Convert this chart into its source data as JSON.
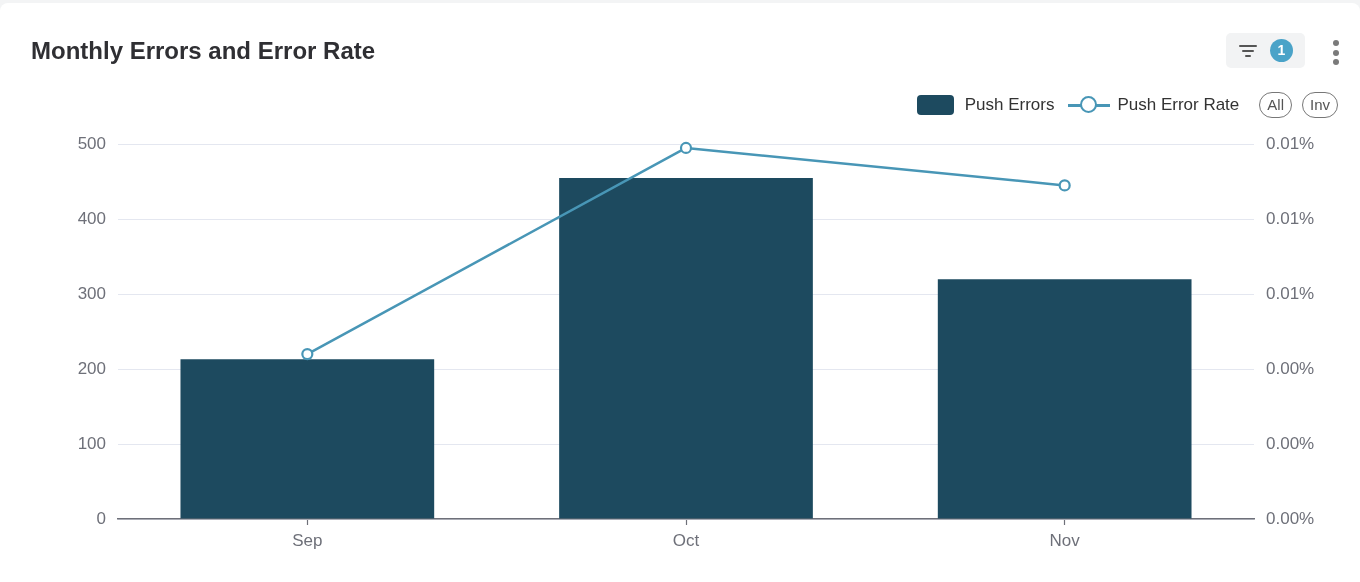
{
  "chart_data": {
    "type": "bar",
    "title": "Monthly Errors and Error Rate",
    "categories": [
      "Sep",
      "Oct",
      "Nov"
    ],
    "series": [
      {
        "name": "Push Errors",
        "color": "#1d4a5f",
        "values": [
          213,
          455,
          320
        ]
      },
      {
        "name": "Push Error Rate",
        "type": "line",
        "axis": "y2",
        "color": "#4896b6",
        "values": [
          0.0044,
          0.0099,
          0.0089
        ]
      }
    ],
    "ylim": [
      0,
      500
    ],
    "yticks": [
      0,
      100,
      200,
      300,
      400,
      500
    ],
    "y2lim": [
      0,
      0.01
    ],
    "y2ticks": [
      {
        "value": 0,
        "label": "0.00%"
      },
      {
        "value": 0.002,
        "label": "0.00%"
      },
      {
        "value": 0.004,
        "label": "0.00%"
      },
      {
        "value": 0.006,
        "label": "0.01%"
      },
      {
        "value": 0.008,
        "label": "0.01%"
      },
      {
        "value": 0.01,
        "label": "0.01%"
      }
    ],
    "grid": "y",
    "legend": "top right",
    "marker": "circle",
    "annotations": [
      "1",
      "All",
      "Inv"
    ]
  }
}
